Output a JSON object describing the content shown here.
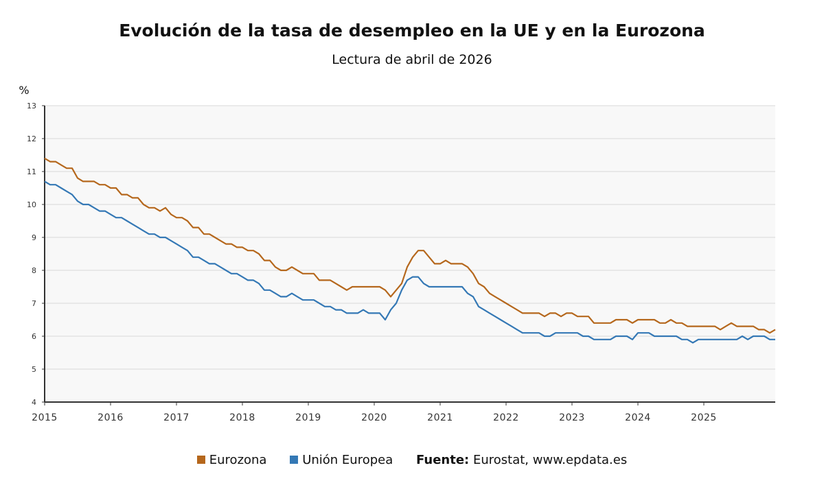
{
  "chart_data": {
    "type": "line",
    "title": "Evolución de la tasa de desempleo en la UE y en la Eurozona",
    "subtitle": "Lectura de abril de 2026",
    "ylabel": "%",
    "ylim": [
      4,
      13
    ],
    "yticks": [
      "4",
      "5",
      "6",
      "7",
      "8",
      "9",
      "10",
      "11",
      "12",
      "13"
    ],
    "xticks": [
      "2015",
      "2016",
      "2017",
      "2018",
      "2019",
      "2020",
      "2021",
      "2022",
      "2023",
      "2024",
      "2025"
    ],
    "x_start": "2015-01",
    "x_frequency": "monthly",
    "grid": true,
    "legend_position": "bottom",
    "series": [
      {
        "name": "Eurozona",
        "color": "#b5671c",
        "values": [
          11.4,
          11.3,
          11.3,
          11.2,
          11.1,
          11.1,
          10.8,
          10.7,
          10.7,
          10.7,
          10.6,
          10.6,
          10.5,
          10.5,
          10.3,
          10.3,
          10.2,
          10.2,
          10.0,
          9.9,
          9.9,
          9.8,
          9.9,
          9.7,
          9.6,
          9.6,
          9.5,
          9.3,
          9.3,
          9.1,
          9.1,
          9.0,
          8.9,
          8.8,
          8.8,
          8.7,
          8.7,
          8.6,
          8.6,
          8.5,
          8.3,
          8.3,
          8.1,
          8.0,
          8.0,
          8.1,
          8.0,
          7.9,
          7.9,
          7.9,
          7.7,
          7.7,
          7.7,
          7.6,
          7.5,
          7.4,
          7.5,
          7.5,
          7.5,
          7.5,
          7.5,
          7.5,
          7.4,
          7.2,
          7.4,
          7.6,
          8.1,
          8.4,
          8.6,
          8.6,
          8.4,
          8.2,
          8.2,
          8.3,
          8.2,
          8.2,
          8.2,
          8.1,
          7.9,
          7.6,
          7.5,
          7.3,
          7.2,
          7.1,
          7.0,
          6.9,
          6.8,
          6.7,
          6.7,
          6.7,
          6.7,
          6.6,
          6.7,
          6.7,
          6.6,
          6.7,
          6.7,
          6.6,
          6.6,
          6.6,
          6.4,
          6.4,
          6.4,
          6.4,
          6.5,
          6.5,
          6.5,
          6.4,
          6.5,
          6.5,
          6.5,
          6.5,
          6.4,
          6.4,
          6.5,
          6.4,
          6.4,
          6.3,
          6.3,
          6.3,
          6.3,
          6.3,
          6.3,
          6.2,
          6.3,
          6.4,
          6.3,
          6.3,
          6.3,
          6.3,
          6.2,
          6.2,
          6.1,
          6.2
        ]
      },
      {
        "name": "Unión Europea",
        "color": "#3478b5",
        "values": [
          10.7,
          10.6,
          10.6,
          10.5,
          10.4,
          10.3,
          10.1,
          10.0,
          10.0,
          9.9,
          9.8,
          9.8,
          9.7,
          9.6,
          9.6,
          9.5,
          9.4,
          9.3,
          9.2,
          9.1,
          9.1,
          9.0,
          9.0,
          8.9,
          8.8,
          8.7,
          8.6,
          8.4,
          8.4,
          8.3,
          8.2,
          8.2,
          8.1,
          8.0,
          7.9,
          7.9,
          7.8,
          7.7,
          7.7,
          7.6,
          7.4,
          7.4,
          7.3,
          7.2,
          7.2,
          7.3,
          7.2,
          7.1,
          7.1,
          7.1,
          7.0,
          6.9,
          6.9,
          6.8,
          6.8,
          6.7,
          6.7,
          6.7,
          6.8,
          6.7,
          6.7,
          6.7,
          6.5,
          6.8,
          7.0,
          7.4,
          7.7,
          7.8,
          7.8,
          7.6,
          7.5,
          7.5,
          7.5,
          7.5,
          7.5,
          7.5,
          7.5,
          7.3,
          7.2,
          6.9,
          6.8,
          6.7,
          6.6,
          6.5,
          6.4,
          6.3,
          6.2,
          6.1,
          6.1,
          6.1,
          6.1,
          6.0,
          6.0,
          6.1,
          6.1,
          6.1,
          6.1,
          6.1,
          6.0,
          6.0,
          5.9,
          5.9,
          5.9,
          5.9,
          6.0,
          6.0,
          6.0,
          5.9,
          6.1,
          6.1,
          6.1,
          6.0,
          6.0,
          6.0,
          6.0,
          6.0,
          5.9,
          5.9,
          5.8,
          5.9,
          5.9,
          5.9,
          5.9,
          5.9,
          5.9,
          5.9,
          5.9,
          6.0,
          5.9,
          6.0,
          6.0,
          6.0,
          5.9,
          5.9
        ]
      }
    ]
  },
  "source": {
    "label": "Fuente:",
    "text": "Eurostat,",
    "link": "www.epdata.es"
  }
}
